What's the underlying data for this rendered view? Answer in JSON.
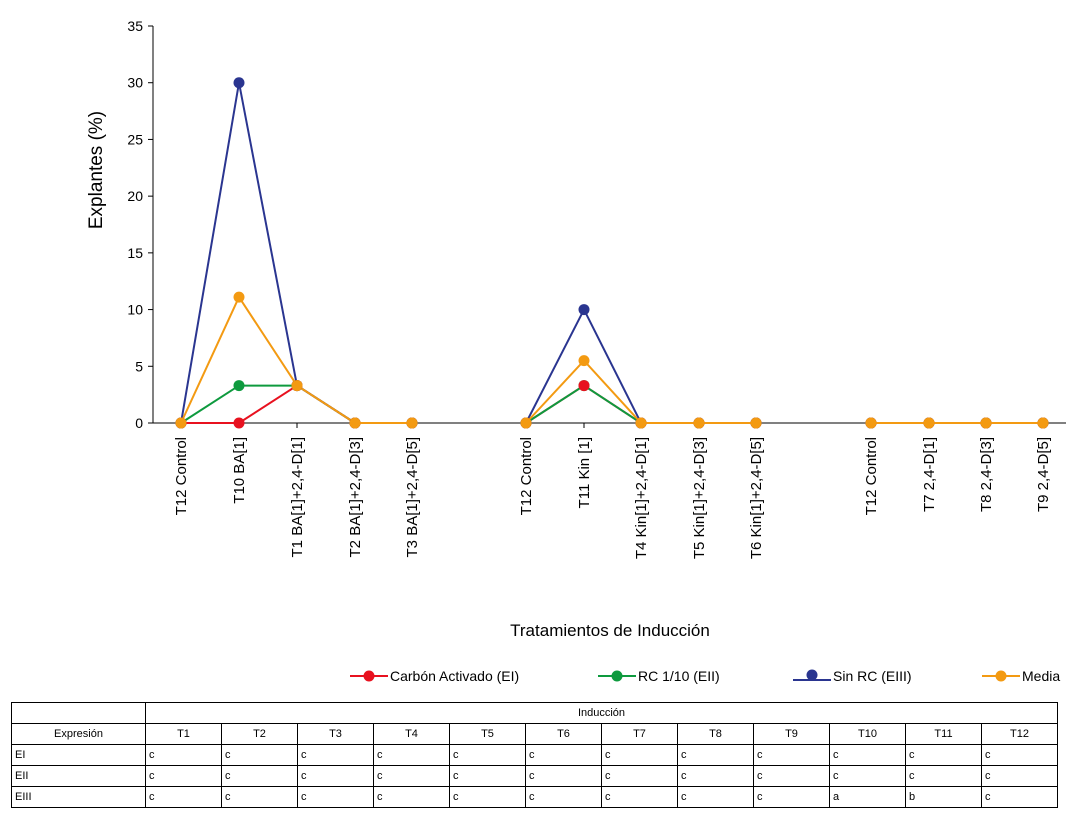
{
  "chart_data": {
    "type": "line",
    "title": "",
    "xlabel": "Tratamientos de Inducción",
    "ylabel": "Explantes (%)",
    "ylim": [
      0,
      35
    ],
    "yticks": [
      0,
      5,
      10,
      15,
      20,
      25,
      30,
      35
    ],
    "grid": false,
    "legend_position": "bottom",
    "groups": [
      {
        "categories": [
          "T12 Control",
          "T10 BA[1]",
          "T1 BA[1]+2,4-D[1]",
          "T2 BA[1]+2,4-D[3]",
          "T3 BA[1]+2,4-D[5]"
        ]
      },
      {
        "categories": [
          "T12 Control",
          "T11 Kin [1]",
          "T4 Kin[1]+2,4-D[1]",
          "T5 Kin[1]+2,4-D[3]",
          "T6 Kin[1]+2,4-D[5]"
        ]
      },
      {
        "categories": [
          "T12 Control",
          "T7 2,4-D[1]",
          "T8 2,4-D[3]",
          "T9 2,4-D[5]"
        ]
      }
    ],
    "series": [
      {
        "name": "Carbón Activado (EI)",
        "color": "#e8111f",
        "marker": true,
        "values": [
          [
            0,
            0,
            3.3,
            0,
            0
          ],
          [
            0,
            3.3,
            0,
            0,
            0
          ],
          [
            0,
            0,
            0,
            0
          ]
        ]
      },
      {
        "name": "RC 1/10 (EII)",
        "color": "#0e9a3e",
        "marker": true,
        "values": [
          [
            0,
            3.3,
            3.3,
            0,
            0
          ],
          [
            0,
            3.3,
            0,
            0,
            0
          ],
          [
            0,
            0,
            0,
            0
          ]
        ]
      },
      {
        "name": "Sin RC (EIII)",
        "color": "#2a3590",
        "marker": true,
        "values": [
          [
            0,
            30,
            3.3,
            0,
            0
          ],
          [
            0,
            10,
            0,
            0,
            0
          ],
          [
            0,
            0,
            0,
            0
          ]
        ]
      },
      {
        "name": "Media",
        "color": "#f39a12",
        "marker": true,
        "values": [
          [
            0,
            11.1,
            3.3,
            0,
            0
          ],
          [
            0,
            5.5,
            0,
            0,
            0
          ],
          [
            0,
            0,
            0,
            0
          ]
        ]
      }
    ]
  },
  "table": {
    "corner": "",
    "header_group": "Inducción",
    "col_header": "Expresión",
    "columns": [
      "T1",
      "T2",
      "T3",
      "T4",
      "T5",
      "T6",
      "T7",
      "T8",
      "T9",
      "T10",
      "T11",
      "T12"
    ],
    "rows": [
      {
        "label": "EI",
        "cells": [
          "c",
          "c",
          "c",
          "c",
          "c",
          "c",
          "c",
          "c",
          "c",
          "c",
          "c",
          "c"
        ]
      },
      {
        "label": "EII",
        "cells": [
          "c",
          "c",
          "c",
          "c",
          "c",
          "c",
          "c",
          "c",
          "c",
          "c",
          "c",
          "c"
        ]
      },
      {
        "label": "EIII",
        "cells": [
          "c",
          "c",
          "c",
          "c",
          "c",
          "c",
          "c",
          "c",
          "c",
          "a",
          "b",
          "c"
        ]
      }
    ]
  }
}
